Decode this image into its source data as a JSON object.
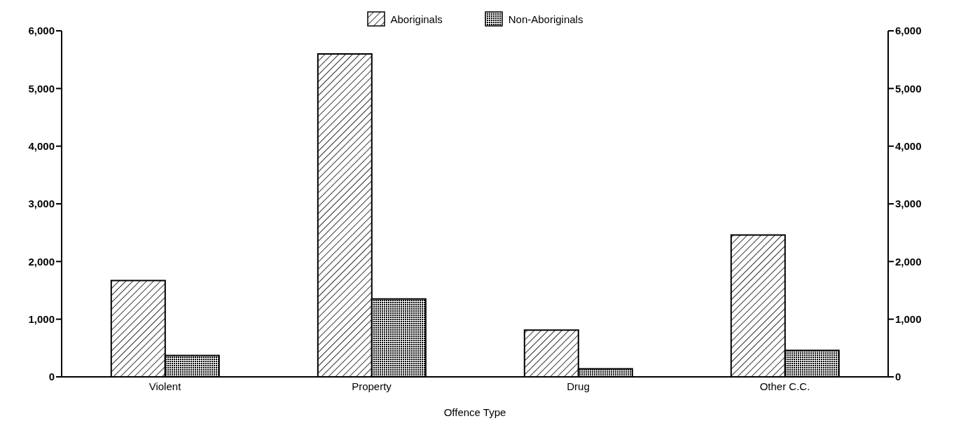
{
  "chart_data": {
    "type": "bar",
    "xlabel": "Offence Type",
    "categories": [
      "Violent",
      "Property",
      "Drug",
      "Other C.C."
    ],
    "series": [
      {
        "name": "Aboriginals",
        "color": "#000000",
        "values": [
          1670,
          5600,
          810,
          2460
        ]
      },
      {
        "name": "Non-Aboriginals",
        "color": "#000000",
        "values": [
          370,
          1350,
          140,
          460
        ]
      }
    ],
    "ylim": [
      0,
      6000
    ],
    "yticks": [
      {
        "value": 0,
        "label": "0"
      },
      {
        "value": 1000,
        "label": "1,000"
      },
      {
        "value": 2000,
        "label": "2,000"
      },
      {
        "value": 3000,
        "label": "3,000"
      },
      {
        "value": 4000,
        "label": "4,000"
      },
      {
        "value": 5000,
        "label": "5,000"
      },
      {
        "value": 6000,
        "label": "6,000"
      }
    ],
    "y2lim": [
      0,
      6000
    ],
    "y2ticks": [
      {
        "value": 0,
        "label": "0"
      },
      {
        "value": 1000,
        "label": "1,000"
      },
      {
        "value": 2000,
        "label": "2,000"
      },
      {
        "value": 3000,
        "label": "3,000"
      },
      {
        "value": 4000,
        "label": "4,000"
      },
      {
        "value": 5000,
        "label": "5,000"
      },
      {
        "value": 6000,
        "label": "6,000"
      }
    ],
    "legend": "top",
    "grid": false
  }
}
